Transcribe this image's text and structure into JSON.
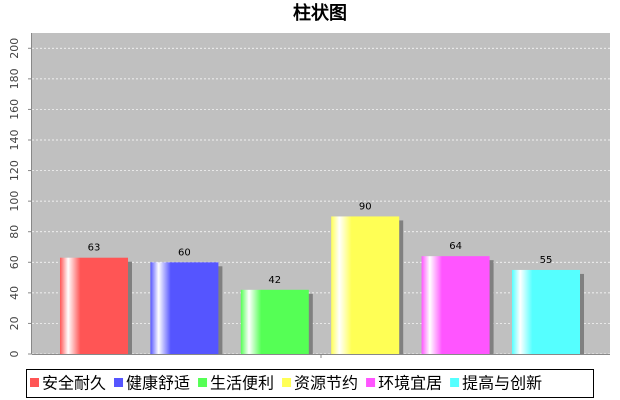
{
  "chart_data": {
    "type": "bar",
    "title": "柱状图",
    "categories": [
      null
    ],
    "series": [
      {
        "name": "安全耐久",
        "color": "#ff5555",
        "values": [
          63
        ]
      },
      {
        "name": "健康舒适",
        "color": "#5555ff",
        "values": [
          60
        ]
      },
      {
        "name": "生活便利",
        "color": "#55ff55",
        "values": [
          42
        ]
      },
      {
        "name": "资源节约",
        "color": "#ffff55",
        "values": [
          90
        ]
      },
      {
        "name": "环境宜居",
        "color": "#ff55ff",
        "values": [
          64
        ]
      },
      {
        "name": "提高与创新",
        "color": "#55ffff",
        "values": [
          55
        ]
      }
    ],
    "ylim": [
      0,
      210
    ],
    "yticks": [
      0,
      20,
      40,
      60,
      80,
      100,
      120,
      140,
      160,
      180,
      200
    ],
    "grid": true
  }
}
